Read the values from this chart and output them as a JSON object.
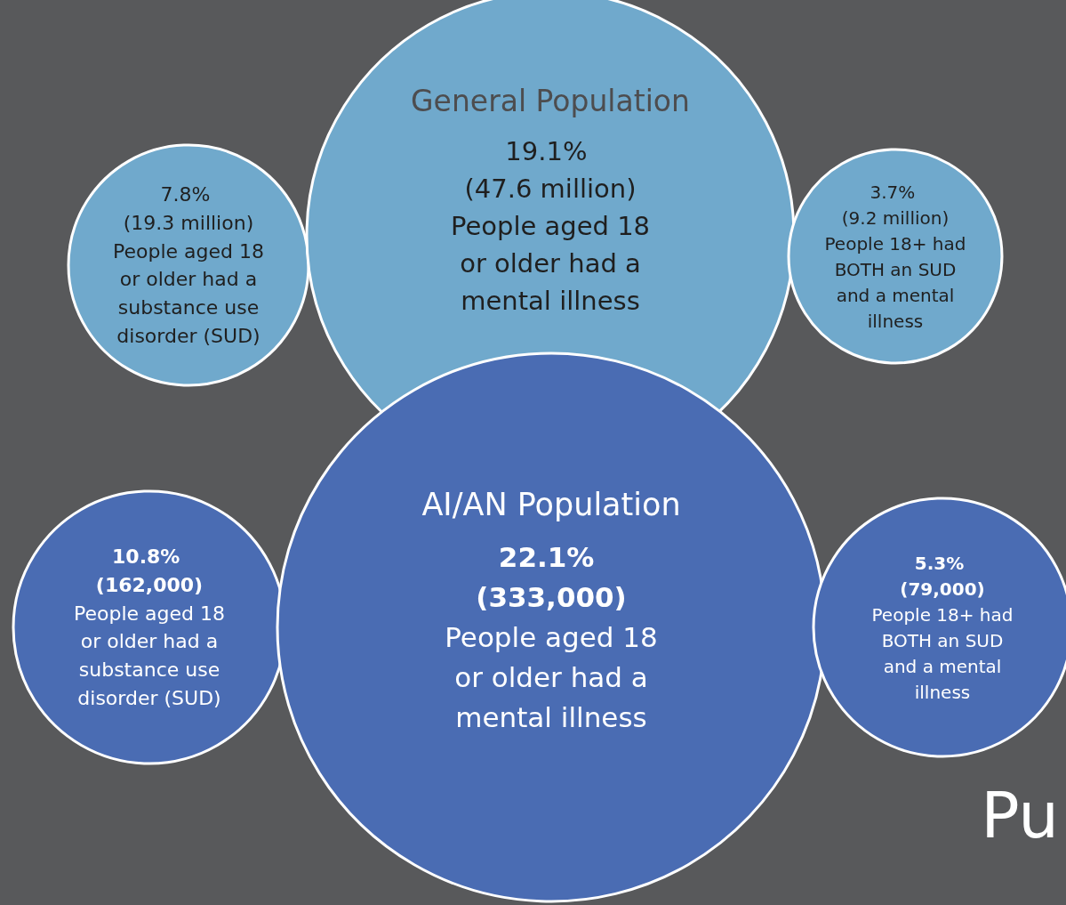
{
  "chart_data": {
    "type": "other",
    "categories": [
      "People aged 18 or older had a substance use disorder (SUD)",
      "People aged 18 or older had a mental illness",
      "People 18+ had BOTH an SUD and a mental illness"
    ],
    "series": [
      {
        "name": "General Population",
        "color": "#70a9cc",
        "values": [
          7.8,
          19.1,
          3.7
        ],
        "value_labels": [
          "7.8% (19.3 million)",
          "19.1% (47.6 million)",
          "3.7% (9.2 million)"
        ]
      },
      {
        "name": "AI/AN Population",
        "color": "#4a6cb3",
        "values": [
          10.8,
          22.1,
          5.3
        ],
        "value_labels": [
          "10.8% (162,000)",
          "22.1% (333,000)",
          "5.3% (79,000)"
        ]
      }
    ],
    "annotations": [
      "Pu"
    ],
    "legend": false
  }
}
